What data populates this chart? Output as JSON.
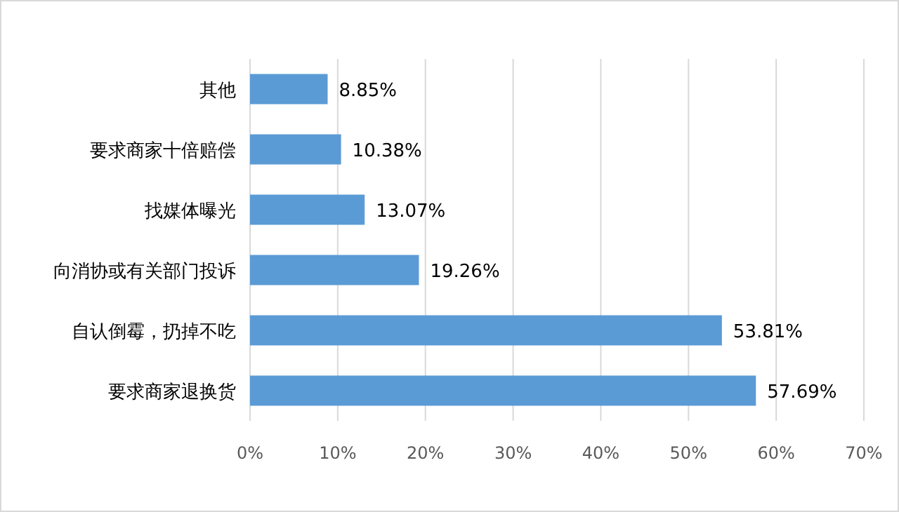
{
  "chart_data": {
    "type": "bar",
    "orientation": "horizontal",
    "categories": [
      "其他",
      "要求商家十倍赔偿",
      "找媒体曝光",
      "向消协或有关部门投诉",
      "自认倒霉，扔掉不吃",
      "要求商家退换货"
    ],
    "values": [
      8.85,
      10.38,
      13.07,
      19.26,
      53.81,
      57.69
    ],
    "value_labels": [
      "8.85%",
      "10.38%",
      "13.07%",
      "19.26%",
      "53.81%",
      "57.69%"
    ],
    "color": "#5b9bd5",
    "xlim": [
      0,
      70
    ],
    "xticks": [
      {
        "value": 0,
        "label": "0%"
      },
      {
        "value": 10,
        "label": "10%"
      },
      {
        "value": 20,
        "label": "20%"
      },
      {
        "value": 30,
        "label": "30%"
      },
      {
        "value": 40,
        "label": "40%"
      },
      {
        "value": 50,
        "label": "50%"
      },
      {
        "value": 60,
        "label": "60%"
      },
      {
        "value": 70,
        "label": "70%"
      }
    ],
    "grid": "x"
  }
}
